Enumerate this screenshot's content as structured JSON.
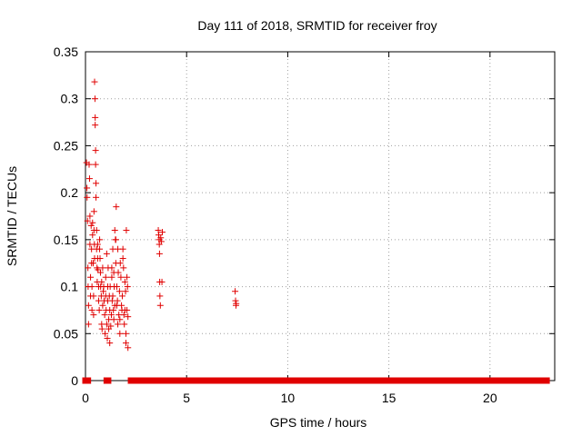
{
  "chart_data": {
    "type": "scatter",
    "title": "Day 111 of 2018, SRMTID for receiver froy",
    "xlabel": "GPS time / hours",
    "ylabel": "SRMTID / TECUs",
    "xlim": [
      0,
      23.2
    ],
    "ylim": [
      0,
      0.35
    ],
    "xticks": [
      0,
      5,
      10,
      15,
      20
    ],
    "xtick_labels": [
      "0",
      "5",
      "10",
      "15",
      "20"
    ],
    "yticks": [
      0,
      0.05,
      0.1,
      0.15,
      0.2,
      0.25,
      0.3,
      0.35
    ],
    "ytick_labels": [
      "0",
      "0.05",
      "0.1",
      "0.15",
      "0.2",
      "0.25",
      "0.3",
      "0.35"
    ],
    "grid": true,
    "marker": "plus",
    "color": "#e00000",
    "series": [
      {
        "points": [
          [
            0.05,
            0.232
          ],
          [
            0.07,
            0.205
          ],
          [
            0.08,
            0.195
          ],
          [
            0.1,
            0.17
          ],
          [
            0.12,
            0.12
          ],
          [
            0.13,
            0.1
          ],
          [
            0.15,
            0.08
          ],
          [
            0.15,
            0.06
          ],
          [
            0.18,
            0.23
          ],
          [
            0.2,
            0.215
          ],
          [
            0.22,
            0.175
          ],
          [
            0.22,
            0.145
          ],
          [
            0.25,
            0.11
          ],
          [
            0.25,
            0.09
          ],
          [
            0.28,
            0.165
          ],
          [
            0.3,
            0.14
          ],
          [
            0.3,
            0.125
          ],
          [
            0.32,
            0.1
          ],
          [
            0.32,
            0.075
          ],
          [
            0.35,
            0.168
          ],
          [
            0.35,
            0.155
          ],
          [
            0.38,
            0.125
          ],
          [
            0.4,
            0.09
          ],
          [
            0.4,
            0.07
          ],
          [
            0.42,
            0.18
          ],
          [
            0.42,
            0.16
          ],
          [
            0.44,
            0.145
          ],
          [
            0.45,
            0.13
          ],
          [
            0.45,
            0.318
          ],
          [
            0.47,
            0.3
          ],
          [
            0.48,
            0.28
          ],
          [
            0.48,
            0.272
          ],
          [
            0.5,
            0.245
          ],
          [
            0.5,
            0.23
          ],
          [
            0.52,
            0.21
          ],
          [
            0.52,
            0.195
          ],
          [
            0.55,
            0.16
          ],
          [
            0.55,
            0.14
          ],
          [
            0.57,
            0.12
          ],
          [
            0.58,
            0.105
          ],
          [
            0.6,
            0.145
          ],
          [
            0.6,
            0.13
          ],
          [
            0.62,
            0.118
          ],
          [
            0.65,
            0.1
          ],
          [
            0.65,
            0.085
          ],
          [
            0.68,
            0.075
          ],
          [
            0.7,
            0.14
          ],
          [
            0.7,
            0.15
          ],
          [
            0.72,
            0.13
          ],
          [
            0.74,
            0.115
          ],
          [
            0.75,
            0.1
          ],
          [
            0.78,
            0.09
          ],
          [
            0.8,
            0.105
          ],
          [
            0.8,
            0.06
          ],
          [
            0.82,
            0.055
          ],
          [
            0.85,
            0.08
          ],
          [
            0.85,
            0.12
          ],
          [
            0.88,
            0.095
          ],
          [
            0.9,
            0.1
          ],
          [
            0.92,
            0.085
          ],
          [
            0.95,
            0.07
          ],
          [
            0.97,
            0.05
          ],
          [
            1,
            0.09
          ],
          [
            1,
            0.11
          ],
          [
            1.02,
            0.075
          ],
          [
            1.05,
            0.135
          ],
          [
            1.05,
            0.06
          ],
          [
            1.08,
            0.045
          ],
          [
            1.1,
            0.085
          ],
          [
            1.1,
            0.1
          ],
          [
            1.12,
            0.12
          ],
          [
            1.15,
            0.065
          ],
          [
            1.15,
            0.055
          ],
          [
            1.18,
            0.09
          ],
          [
            1.2,
            0.04
          ],
          [
            1.2,
            0.075
          ],
          [
            1.22,
            0.1
          ],
          [
            1.25,
            0.058
          ],
          [
            1.28,
            0.07
          ],
          [
            1.3,
            0.12
          ],
          [
            1.3,
            0.11
          ],
          [
            1.32,
            0.085
          ],
          [
            1.35,
            0.14
          ],
          [
            1.35,
            0.09
          ],
          [
            1.38,
            0.075
          ],
          [
            1.4,
            0.065
          ],
          [
            1.4,
            0.115
          ],
          [
            1.42,
            0.1
          ],
          [
            1.45,
            0.08
          ],
          [
            1.45,
            0.16
          ],
          [
            1.48,
            0.15
          ],
          [
            1.5,
            0.15
          ],
          [
            1.5,
            0.125
          ],
          [
            1.52,
            0.185
          ],
          [
            1.55,
            0.1
          ],
          [
            1.55,
            0.08
          ],
          [
            1.58,
            0.085
          ],
          [
            1.6,
            0.06
          ],
          [
            1.6,
            0.14
          ],
          [
            1.62,
            0.115
          ],
          [
            1.65,
            0.07
          ],
          [
            1.68,
            0.095
          ],
          [
            1.7,
            0.05
          ],
          [
            1.7,
            0.065
          ],
          [
            1.72,
            0.125
          ],
          [
            1.75,
            0.11
          ],
          [
            1.78,
            0.08
          ],
          [
            1.8,
            0.075
          ],
          [
            1.82,
            0.09
          ],
          [
            1.85,
            0.13
          ],
          [
            1.85,
            0.14
          ],
          [
            1.88,
            0.12
          ],
          [
            1.9,
            0.07
          ],
          [
            1.92,
            0.06
          ],
          [
            1.95,
            0.075
          ],
          [
            1.95,
            0.105
          ],
          [
            1.98,
            0.095
          ],
          [
            2,
            0.04
          ],
          [
            2,
            0.05
          ],
          [
            2.02,
            0.16
          ],
          [
            2.05,
            0.075
          ],
          [
            2.05,
            0.11
          ],
          [
            2.08,
            0.1
          ],
          [
            2.1,
            0.068
          ],
          [
            2.1,
            0.035
          ],
          [
            3.6,
            0.16
          ],
          [
            3.62,
            0.155
          ],
          [
            3.64,
            0.15
          ],
          [
            3.65,
            0.145
          ],
          [
            3.66,
            0.135
          ],
          [
            3.67,
            0.105
          ],
          [
            3.68,
            0.09
          ],
          [
            3.7,
            0.08
          ],
          [
            3.72,
            0.152
          ],
          [
            3.75,
            0.148
          ],
          [
            3.78,
            0.105
          ],
          [
            3.8,
            0.158
          ],
          [
            7.4,
            0.095
          ],
          [
            7.42,
            0.085
          ],
          [
            7.44,
            0.08
          ],
          [
            7.45,
            0.082
          ]
        ],
        "zero_spans": [
          [
            0,
            0.12
          ],
          [
            1.05,
            1.12
          ],
          [
            2.25,
            6.7
          ],
          [
            6.85,
            7.4
          ],
          [
            7.5,
            16.9
          ],
          [
            17.05,
            17.15
          ],
          [
            17.3,
            22.8
          ]
        ]
      }
    ]
  }
}
